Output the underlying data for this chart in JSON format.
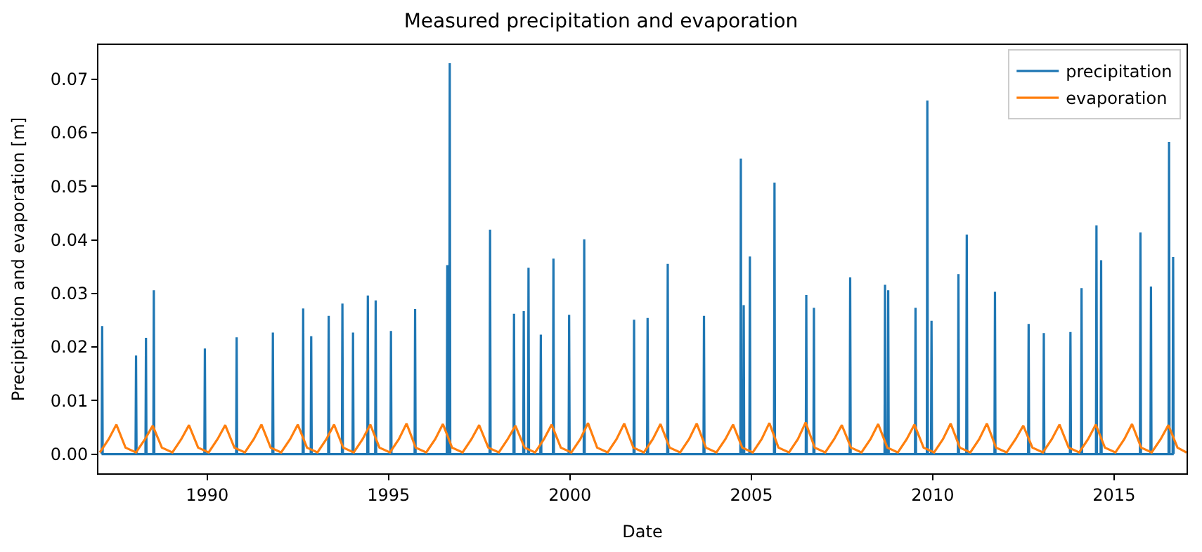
{
  "chart_data": {
    "type": "line",
    "title": "Measured precipitation and evaporation",
    "xlabel": "Date",
    "ylabel": "Precipitation and evaporation [m]",
    "xlim": [
      "1987-01-01",
      "2016-12-31"
    ],
    "xticks": [
      {
        "value": "1990-01-01",
        "label": "1990"
      },
      {
        "value": "1995-01-01",
        "label": "1995"
      },
      {
        "value": "2000-01-01",
        "label": "2000"
      },
      {
        "value": "2005-01-01",
        "label": "2005"
      },
      {
        "value": "2010-01-01",
        "label": "2010"
      },
      {
        "value": "2015-01-01",
        "label": "2015"
      }
    ],
    "ylim": [
      -0.0036,
      0.0764
    ],
    "yticks": [
      {
        "value": 0,
        "label": "0.00"
      },
      {
        "value": 0.01,
        "label": "0.01"
      },
      {
        "value": 0.02,
        "label": "0.02"
      },
      {
        "value": 0.03,
        "label": "0.03"
      },
      {
        "value": 0.04,
        "label": "0.04"
      },
      {
        "value": 0.05,
        "label": "0.05"
      },
      {
        "value": 0.06,
        "label": "0.06"
      },
      {
        "value": 0.07,
        "label": "0.07"
      }
    ],
    "legend": "top right",
    "marker": "none",
    "line_style": "solid",
    "series": [
      {
        "name": "precipitation",
        "color": "#1f77b4",
        "x": [
          "1987-02-03",
          "1987-02-08",
          "1987-02-13",
          "1988-01-10",
          "1988-01-15",
          "1988-01-20",
          "1988-04-19",
          "1988-04-24",
          "1988-04-29",
          "1988-07-07",
          "1988-07-12",
          "1988-07-17",
          "1989-12-03",
          "1989-12-08",
          "1989-12-13",
          "1990-10-19",
          "1990-10-24",
          "1990-10-29",
          "1991-10-19",
          "1991-10-24",
          "1991-10-29",
          "1992-08-19",
          "1992-08-24",
          "1992-08-29",
          "1992-11-08",
          "1992-11-13",
          "1992-11-18",
          "1993-05-03",
          "1993-05-08",
          "1993-05-13",
          "1993-09-18",
          "1993-09-23",
          "1993-09-28",
          "1994-01-03",
          "1994-01-08",
          "1994-01-13",
          "1994-06-01",
          "1994-06-06",
          "1994-06-11",
          "1994-08-19",
          "1994-08-24",
          "1994-08-29",
          "1995-01-20",
          "1995-01-25",
          "1995-01-30",
          "1995-09-20",
          "1995-09-25",
          "1995-09-30",
          "1996-08-09",
          "1996-08-14",
          "1996-08-19",
          "1996-09-03",
          "1996-09-08",
          "1996-09-13",
          "1997-10-14",
          "1997-10-19",
          "1997-10-24",
          "1998-06-12",
          "1998-06-17",
          "1998-06-22",
          "1998-09-18",
          "1998-09-23",
          "1998-09-28",
          "1998-11-05",
          "1998-11-10",
          "1998-11-15",
          "1999-03-09",
          "1999-03-14",
          "1999-03-19",
          "1999-07-14",
          "1999-07-19",
          "1999-07-24",
          "1999-12-19",
          "1999-12-24",
          "1999-12-29",
          "2000-05-19",
          "2000-05-24",
          "2000-05-29",
          "2001-10-03",
          "2001-10-08",
          "2001-10-13",
          "2002-02-16",
          "2002-02-21",
          "2002-02-26",
          "2002-09-07",
          "2002-09-12",
          "2002-09-17",
          "2003-09-07",
          "2003-09-12",
          "2003-09-17",
          "2004-09-12",
          "2004-09-17",
          "2004-09-22",
          "2004-10-11",
          "2004-10-16",
          "2004-10-21",
          "2004-12-12",
          "2004-12-17",
          "2004-12-22",
          "2005-08-17",
          "2005-08-22",
          "2005-08-27",
          "2006-07-03",
          "2006-07-08",
          "2006-07-13",
          "2006-09-18",
          "2006-09-23",
          "2006-09-28",
          "2007-09-18",
          "2007-09-23",
          "2007-09-28",
          "2008-09-03",
          "2008-09-08",
          "2008-09-13",
          "2008-10-05",
          "2008-10-10",
          "2008-10-15",
          "2009-07-07",
          "2009-07-12",
          "2009-07-17",
          "2009-11-03",
          "2009-11-08",
          "2009-11-13",
          "2009-12-15",
          "2009-12-20",
          "2009-12-25",
          "2010-09-12",
          "2010-09-17",
          "2010-09-22",
          "2010-12-05",
          "2010-12-10",
          "2010-12-15",
          "2011-09-15",
          "2011-09-20",
          "2011-09-25",
          "2012-08-19",
          "2012-08-24",
          "2012-08-29",
          "2013-01-19",
          "2013-01-24",
          "2013-01-29",
          "2013-10-14",
          "2013-10-19",
          "2013-10-24",
          "2014-02-03",
          "2014-02-08",
          "2014-02-13",
          "2014-07-03",
          "2014-07-08",
          "2014-07-13",
          "2014-08-19",
          "2014-08-24",
          "2014-08-29",
          "2015-09-19",
          "2015-09-24",
          "2015-09-29",
          "2016-01-03",
          "2016-01-08",
          "2016-01-13",
          "2016-07-03",
          "2016-07-08",
          "2016-07-13",
          "2016-08-13",
          "2016-08-18",
          "2016-08-23"
        ],
        "values": [
          0,
          0.0239,
          0,
          0,
          0.0184,
          0,
          0,
          0.0217,
          0,
          0,
          0.0306,
          0,
          0,
          0.0197,
          0,
          0,
          0.0218,
          0,
          0,
          0.0227,
          0,
          0,
          0.0272,
          0,
          0,
          0.022,
          0,
          0,
          0.0258,
          0,
          0,
          0.0281,
          0,
          0,
          0.0227,
          0,
          0,
          0.0296,
          0,
          0,
          0.0287,
          0,
          0,
          0.023,
          0,
          0,
          0.0271,
          0,
          0,
          0.0353,
          0,
          0,
          0.073,
          0,
          0,
          0.0419,
          0,
          0,
          0.0262,
          0,
          0,
          0.0267,
          0,
          0,
          0.0348,
          0,
          0,
          0.0223,
          0,
          0,
          0.0365,
          0,
          0,
          0.026,
          0,
          0,
          0.0401,
          0,
          0,
          0.0251,
          0,
          0,
          0.0254,
          0,
          0,
          0.0355,
          0,
          0,
          0.0258,
          0,
          0,
          0.0552,
          0,
          0,
          0.0278,
          0,
          0,
          0.0369,
          0,
          0,
          0.0507,
          0,
          0,
          0.0297,
          0,
          0,
          0.0273,
          0,
          0,
          0.033,
          0,
          0,
          0.0316,
          0,
          0,
          0.0306,
          0,
          0,
          0.0273,
          0,
          0,
          0.066,
          0,
          0,
          0.0249,
          0,
          0,
          0.0336,
          0,
          0,
          0.041,
          0,
          0,
          0.0303,
          0,
          0,
          0.0243,
          0,
          0,
          0.0226,
          0,
          0,
          0.0228,
          0,
          0,
          0.031,
          0,
          0,
          0.0427,
          0,
          0,
          0.0362,
          0,
          0,
          0.0414,
          0,
          0,
          0.0313,
          0,
          0,
          0.0583,
          0,
          0,
          0.0368,
          0
        ]
      },
      {
        "name": "evaporation",
        "color": "#ff7f0e",
        "x": [
          "1987-01-15",
          "1987-04-15",
          "1987-07-01",
          "1987-10-01",
          "1988-01-15",
          "1988-04-15",
          "1988-07-01",
          "1988-10-01",
          "1989-01-15",
          "1989-04-15",
          "1989-07-01",
          "1989-10-01",
          "1990-01-15",
          "1990-04-15",
          "1990-07-01",
          "1990-10-01",
          "1991-01-15",
          "1991-04-15",
          "1991-07-01",
          "1991-10-01",
          "1992-01-15",
          "1992-04-15",
          "1992-07-01",
          "1992-10-01",
          "1993-01-15",
          "1993-04-15",
          "1993-07-01",
          "1993-10-01",
          "1994-01-15",
          "1994-04-15",
          "1994-07-01",
          "1994-10-01",
          "1995-01-15",
          "1995-04-15",
          "1995-07-01",
          "1995-10-01",
          "1996-01-15",
          "1996-04-15",
          "1996-07-01",
          "1996-10-01",
          "1997-01-15",
          "1997-04-15",
          "1997-07-01",
          "1997-10-01",
          "1998-01-15",
          "1998-04-15",
          "1998-07-01",
          "1998-10-01",
          "1999-01-15",
          "1999-04-15",
          "1999-07-01",
          "1999-10-01",
          "2000-01-15",
          "2000-04-15",
          "2000-07-01",
          "2000-10-01",
          "2001-01-15",
          "2001-04-15",
          "2001-07-01",
          "2001-10-01",
          "2002-01-15",
          "2002-04-15",
          "2002-07-01",
          "2002-10-01",
          "2003-01-15",
          "2003-04-15",
          "2003-07-01",
          "2003-10-01",
          "2004-01-15",
          "2004-04-15",
          "2004-07-01",
          "2004-10-01",
          "2005-01-15",
          "2005-04-15",
          "2005-07-01",
          "2005-10-01",
          "2006-01-15",
          "2006-04-15",
          "2006-07-01",
          "2006-10-01",
          "2007-01-15",
          "2007-04-15",
          "2007-07-01",
          "2007-10-01",
          "2008-01-15",
          "2008-04-15",
          "2008-07-01",
          "2008-10-01",
          "2009-01-15",
          "2009-04-15",
          "2009-07-01",
          "2009-10-01",
          "2010-01-15",
          "2010-04-15",
          "2010-07-01",
          "2010-10-01",
          "2011-01-15",
          "2011-04-15",
          "2011-07-01",
          "2011-10-01",
          "2012-01-15",
          "2012-04-15",
          "2012-07-01",
          "2012-10-01",
          "2013-01-15",
          "2013-04-15",
          "2013-07-01",
          "2013-10-01",
          "2014-01-15",
          "2014-04-15",
          "2014-07-01",
          "2014-10-01",
          "2015-01-15",
          "2015-04-15",
          "2015-07-01",
          "2015-10-01",
          "2016-01-15",
          "2016-04-15",
          "2016-07-01",
          "2016-10-01",
          "2016-12-31"
        ],
        "values": [
          0.0003,
          0.0028,
          0.0055,
          0.0012,
          0.0003,
          0.0028,
          0.0053,
          0.0012,
          0.0003,
          0.0028,
          0.0054,
          0.0012,
          0.0003,
          0.0028,
          0.0054,
          0.0012,
          0.0003,
          0.0028,
          0.0055,
          0.0012,
          0.0003,
          0.0028,
          0.0055,
          0.0012,
          0.0003,
          0.0028,
          0.0055,
          0.0012,
          0.0003,
          0.0028,
          0.0055,
          0.0012,
          0.0003,
          0.0028,
          0.0057,
          0.0012,
          0.0003,
          0.0028,
          0.0056,
          0.0012,
          0.0003,
          0.0028,
          0.0054,
          0.0012,
          0.0003,
          0.0028,
          0.0053,
          0.0012,
          0.0003,
          0.0028,
          0.0055,
          0.0012,
          0.0003,
          0.0028,
          0.0058,
          0.0012,
          0.0003,
          0.0028,
          0.0057,
          0.0012,
          0.0003,
          0.0028,
          0.0056,
          0.0012,
          0.0003,
          0.0028,
          0.0057,
          0.0012,
          0.0003,
          0.0028,
          0.0055,
          0.0012,
          0.0003,
          0.0028,
          0.0058,
          0.0012,
          0.0003,
          0.0028,
          0.0059,
          0.0012,
          0.0003,
          0.0028,
          0.0054,
          0.0012,
          0.0003,
          0.0028,
          0.0056,
          0.0012,
          0.0003,
          0.0028,
          0.0055,
          0.0012,
          0.0003,
          0.0028,
          0.0057,
          0.0012,
          0.0003,
          0.0028,
          0.0057,
          0.0012,
          0.0003,
          0.0028,
          0.0053,
          0.0012,
          0.0003,
          0.0028,
          0.0055,
          0.0012,
          0.0003,
          0.0028,
          0.0055,
          0.0012,
          0.0003,
          0.0028,
          0.0056,
          0.0012,
          0.0003,
          0.0028,
          0.0054,
          0.0012,
          0.0003
        ]
      }
    ]
  }
}
